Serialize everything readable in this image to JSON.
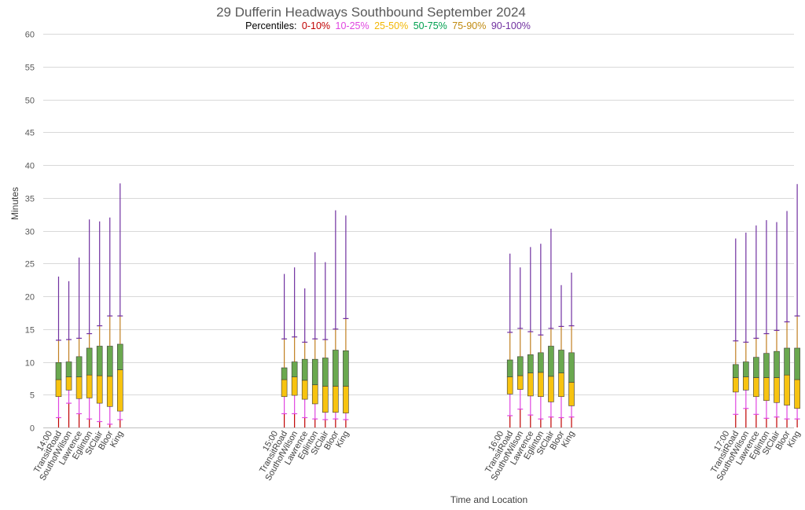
{
  "chart_data": {
    "type": "box",
    "title": "29 Dufferin Headways Southbound September 2024",
    "legend": {
      "prefix": "Percentiles:",
      "entries": [
        {
          "label": "0-10%",
          "color": "#c00000"
        },
        {
          "label": "10-25%",
          "color": "#e046e0"
        },
        {
          "label": "25-50%",
          "color": "#f7c310"
        },
        {
          "label": "50-75%",
          "color": "#2fb04a"
        },
        {
          "label": "75-90%",
          "color": "#c08a10"
        },
        {
          "label": "90-100%",
          "color": "#7030a0"
        }
      ]
    },
    "xlabel": "Time and Location",
    "ylabel": "Minutes",
    "ylim": [
      0,
      60
    ],
    "yticks": [
      0,
      5,
      10,
      15,
      20,
      25,
      30,
      35,
      40,
      45,
      50,
      55,
      60
    ],
    "grid": true,
    "colors": {
      "p0_10": "#c00000",
      "p10_25": "#e046e0",
      "box_lower": "#f7c310",
      "box_upper": "#6aa84f",
      "box_border": "#3a3a3a",
      "p75_90": "#c07f20",
      "p90_100": "#7030a0"
    },
    "groups": [
      {
        "time": "14:00",
        "stops": [
          {
            "name": "TransitRoad",
            "p10": 1.5,
            "p25": 4.7,
            "p50": 7.3,
            "p75": 9.9,
            "p90": 13.3,
            "max": 23.0
          },
          {
            "name": "SouthofWilson",
            "p10": 3.7,
            "p25": 5.7,
            "p50": 7.7,
            "p75": 10.0,
            "p90": 13.4,
            "max": 22.3
          },
          {
            "name": "Lawrence",
            "p10": 2.1,
            "p25": 4.4,
            "p50": 7.7,
            "p75": 10.8,
            "p90": 13.6,
            "max": 25.9
          },
          {
            "name": "Eglinton",
            "p10": 1.3,
            "p25": 4.5,
            "p50": 8.0,
            "p75": 12.1,
            "p90": 14.3,
            "max": 31.7
          },
          {
            "name": "StClair",
            "p10": 0.9,
            "p25": 3.7,
            "p50": 7.9,
            "p75": 12.4,
            "p90": 15.5,
            "max": 31.4
          },
          {
            "name": "Bloor",
            "p10": 0.5,
            "p25": 3.2,
            "p50": 7.8,
            "p75": 12.4,
            "p90": 17.0,
            "max": 32.0
          },
          {
            "name": "King",
            "p10": 1.2,
            "p25": 2.5,
            "p50": 8.8,
            "p75": 12.7,
            "p90": 17.0,
            "max": 37.2
          }
        ]
      },
      {
        "time": "15:00",
        "stops": [
          {
            "name": "TransitRoad",
            "p10": 2.1,
            "p25": 4.7,
            "p50": 7.3,
            "p75": 9.1,
            "p90": 13.5,
            "max": 23.4
          },
          {
            "name": "SouthofWilson",
            "p10": 2.1,
            "p25": 4.9,
            "p50": 7.7,
            "p75": 10.0,
            "p90": 13.8,
            "max": 24.4
          },
          {
            "name": "Lawrence",
            "p10": 1.5,
            "p25": 4.3,
            "p50": 7.2,
            "p75": 10.4,
            "p90": 13.0,
            "max": 21.2
          },
          {
            "name": "Eglinton",
            "p10": 1.3,
            "p25": 3.6,
            "p50": 6.5,
            "p75": 10.4,
            "p90": 13.5,
            "max": 26.7
          },
          {
            "name": "StClair",
            "p10": 1.2,
            "p25": 2.3,
            "p50": 6.3,
            "p75": 10.6,
            "p90": 13.4,
            "max": 25.2
          },
          {
            "name": "Bloor",
            "p10": 1.3,
            "p25": 2.3,
            "p50": 6.3,
            "p75": 11.8,
            "p90": 15.0,
            "max": 33.1
          },
          {
            "name": "King",
            "p10": 1.2,
            "p25": 2.2,
            "p50": 6.3,
            "p75": 11.7,
            "p90": 16.6,
            "max": 32.3
          }
        ]
      },
      {
        "time": "16:00",
        "stops": [
          {
            "name": "TransitRoad",
            "p10": 1.8,
            "p25": 5.1,
            "p50": 7.7,
            "p75": 10.3,
            "p90": 14.5,
            "max": 26.5
          },
          {
            "name": "SouthofWilson",
            "p10": 2.8,
            "p25": 5.8,
            "p50": 7.9,
            "p75": 10.8,
            "p90": 15.1,
            "max": 24.4
          },
          {
            "name": "Lawrence",
            "p10": 1.9,
            "p25": 4.8,
            "p50": 8.3,
            "p75": 11.1,
            "p90": 14.6,
            "max": 27.5
          },
          {
            "name": "Eglinton",
            "p10": 1.3,
            "p25": 4.7,
            "p50": 8.4,
            "p75": 11.4,
            "p90": 14.1,
            "max": 28.0
          },
          {
            "name": "StClair",
            "p10": 1.6,
            "p25": 3.9,
            "p50": 7.8,
            "p75": 12.4,
            "p90": 15.1,
            "max": 30.3
          },
          {
            "name": "Bloor",
            "p10": 1.5,
            "p25": 4.7,
            "p50": 8.3,
            "p75": 11.8,
            "p90": 15.4,
            "max": 21.7
          },
          {
            "name": "King",
            "p10": 1.6,
            "p25": 3.3,
            "p50": 6.9,
            "p75": 11.4,
            "p90": 15.5,
            "max": 23.6
          }
        ]
      },
      {
        "time": "17:00",
        "stops": [
          {
            "name": "TransitRoad",
            "p10": 2.0,
            "p25": 5.4,
            "p50": 7.6,
            "p75": 9.6,
            "p90": 13.2,
            "max": 28.8
          },
          {
            "name": "SouthofWilson",
            "p10": 2.9,
            "p25": 5.7,
            "p50": 7.7,
            "p75": 10.0,
            "p90": 13.0,
            "max": 29.7
          },
          {
            "name": "Lawrence",
            "p10": 2.0,
            "p25": 4.7,
            "p50": 7.6,
            "p75": 10.7,
            "p90": 13.6,
            "max": 30.8
          },
          {
            "name": "Eglinton",
            "p10": 1.4,
            "p25": 4.1,
            "p50": 7.6,
            "p75": 11.3,
            "p90": 14.3,
            "max": 31.6
          },
          {
            "name": "StClair",
            "p10": 1.6,
            "p25": 3.8,
            "p50": 7.6,
            "p75": 11.6,
            "p90": 14.8,
            "max": 31.3
          },
          {
            "name": "Bloor",
            "p10": 1.3,
            "p25": 3.4,
            "p50": 8.0,
            "p75": 12.1,
            "p90": 16.1,
            "max": 33.0
          },
          {
            "name": "King",
            "p10": 1.3,
            "p25": 2.9,
            "p50": 7.3,
            "p75": 12.1,
            "p90": 17.0,
            "max": 37.1
          }
        ]
      }
    ]
  }
}
